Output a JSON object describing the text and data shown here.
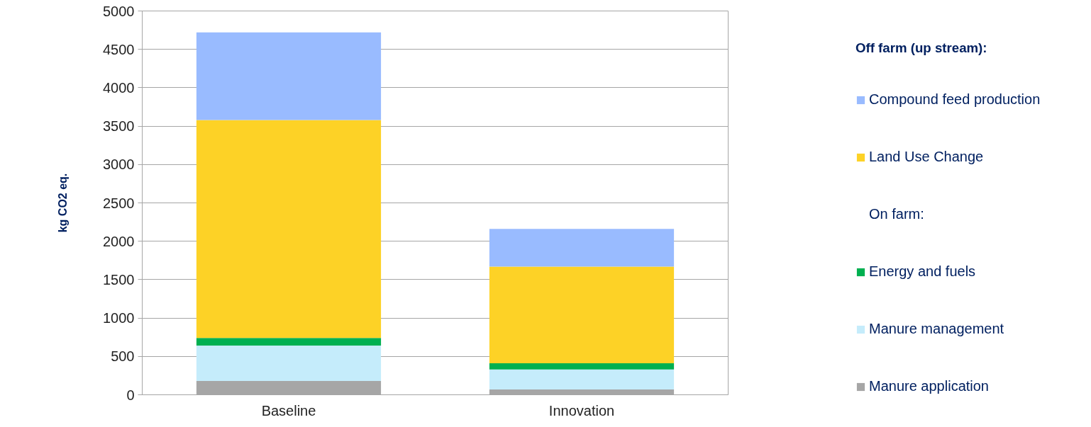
{
  "chart_data": {
    "type": "bar",
    "stacked": true,
    "ylabel": "kg CO2 eq.",
    "categories": [
      "Baseline",
      "Innovation"
    ],
    "series": [
      {
        "name": "Manure application",
        "color": "#a6a6a6",
        "values": [
          180,
          70
        ]
      },
      {
        "name": "Manure management",
        "color": "#c5ecfb",
        "values": [
          460,
          260
        ]
      },
      {
        "name": "Energy and fuels",
        "color": "#00b050",
        "values": [
          100,
          80
        ]
      },
      {
        "name": "Land Use Change",
        "color": "#fdd226",
        "values": [
          2840,
          1260
        ]
      },
      {
        "name": "Compound feed production",
        "color": "#99bbff",
        "values": [
          1140,
          490
        ]
      }
    ],
    "ylim": [
      0,
      5000
    ],
    "yticks": [
      0,
      500,
      1000,
      1500,
      2000,
      2500,
      3000,
      3500,
      4000,
      4500,
      5000
    ],
    "grid": "y",
    "legend": "right",
    "annotations": [
      "Off farm (up stream):",
      "On farm:"
    ]
  }
}
